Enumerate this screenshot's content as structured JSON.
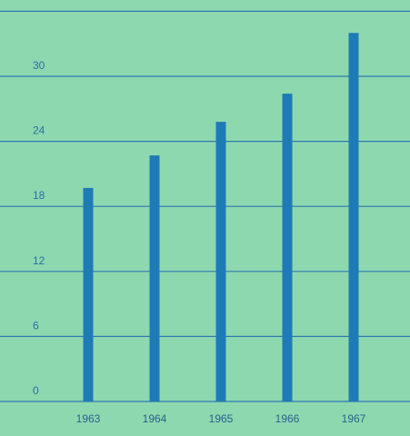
{
  "chart_data": {
    "type": "bar",
    "title": "",
    "xlabel": "",
    "ylabel": "",
    "categories": [
      "1963",
      "1964",
      "1965",
      "1966",
      "1967"
    ],
    "values": [
      19.7,
      22.7,
      25.8,
      28.4,
      34.0
    ],
    "yticks": [
      "0",
      "6",
      "12",
      "18",
      "24",
      "30"
    ],
    "ylim": [
      0,
      36
    ],
    "grid": true,
    "legend": "none",
    "colors": {
      "background": "#8ed8b0",
      "bar": "#1f7bb5",
      "grid": "#2d79b0",
      "tick_text": "#2b6fa0",
      "category_text": "#2b5f8c"
    }
  }
}
